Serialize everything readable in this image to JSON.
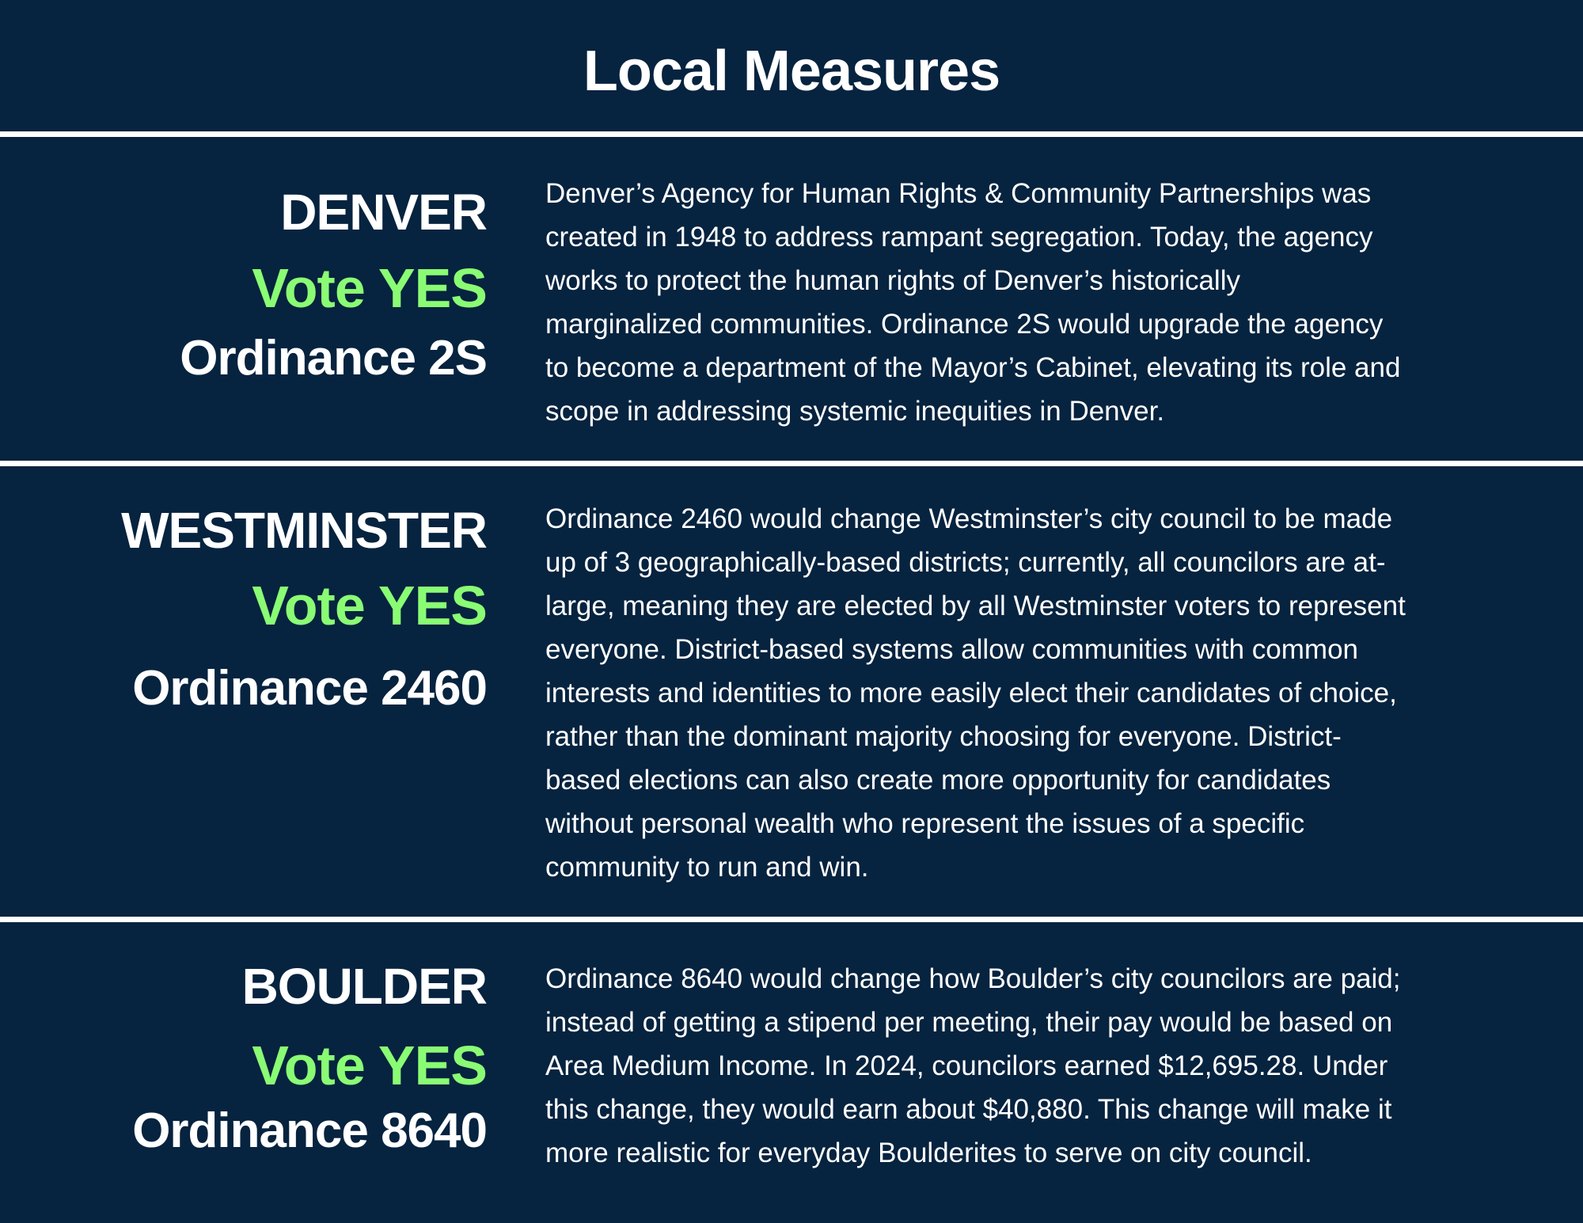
{
  "title": "Local Measures",
  "colors": {
    "background": "#06233f",
    "accent": "#8afc74",
    "text": "#ffffff"
  },
  "measures": [
    {
      "city": "DENVER",
      "vote": "Vote YES",
      "ordinance": "Ordinance 2S",
      "description": [
        "Denver’s Agency for Human Rights & Community Partnerships was",
        "created in 1948 to address rampant segregation. Today, the agency",
        "works to protect the human rights of Denver’s historically",
        "marginalized communities. Ordinance 2S would upgrade the agency",
        "to become a department of the Mayor’s Cabinet, elevating its role and",
        "scope in addressing systemic inequities in Denver."
      ]
    },
    {
      "city": "WESTMINSTER",
      "vote": "Vote YES",
      "ordinance": "Ordinance 2460",
      "description": [
        "Ordinance 2460 would change Westminster’s city council to be made",
        "up of 3 geographically-based districts; currently, all councilors are at-",
        "large, meaning they are elected by all Westminster voters to represent",
        "everyone. District-based systems allow communities with common",
        "interests and identities to more easily elect their candidates of choice,",
        "rather than the dominant majority choosing for everyone. District-",
        "based elections can also create more opportunity for candidates",
        "without personal wealth who represent the issues of a specific",
        "community to run and win."
      ]
    },
    {
      "city": "BOULDER",
      "vote": "Vote YES",
      "ordinance": "Ordinance 8640",
      "description": [
        "Ordinance 8640 would change how Boulder’s city councilors are paid;",
        "instead of getting a stipend per meeting, their pay would be based on",
        "Area Medium Income. In 2024, councilors earned $12,695.28. Under",
        "this change, they would earn about $40,880. This change will make it",
        "more realistic for everyday Boulderites to serve on city council."
      ]
    }
  ]
}
